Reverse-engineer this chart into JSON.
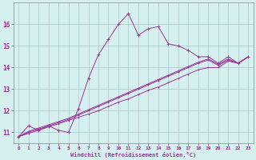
{
  "xlabel": "Windchill (Refroidissement éolien,°C)",
  "background_color": "#d6f0f0",
  "line_color": "#993399",
  "x_data": [
    0,
    1,
    2,
    3,
    4,
    5,
    6,
    7,
    8,
    9,
    10,
    11,
    12,
    13,
    14,
    15,
    16,
    17,
    18,
    19,
    20,
    21,
    22,
    23
  ],
  "y_main": [
    10.8,
    11.3,
    11.1,
    11.3,
    11.1,
    11.0,
    12.1,
    13.5,
    14.6,
    15.3,
    16.0,
    16.5,
    15.5,
    15.8,
    15.9,
    15.1,
    15.0,
    14.8,
    14.5,
    14.5,
    14.2,
    14.5,
    14.2,
    14.5
  ],
  "y_line1": [
    10.8,
    10.95,
    11.1,
    11.25,
    11.4,
    11.55,
    11.7,
    11.85,
    12.0,
    12.2,
    12.4,
    12.55,
    12.75,
    12.95,
    13.1,
    13.3,
    13.5,
    13.7,
    13.9,
    14.0,
    14.0,
    14.3,
    14.2,
    14.5
  ],
  "y_line2": [
    10.8,
    11.0,
    11.15,
    11.3,
    11.45,
    11.6,
    11.8,
    12.0,
    12.2,
    12.4,
    12.6,
    12.8,
    13.0,
    13.2,
    13.4,
    13.6,
    13.8,
    14.0,
    14.2,
    14.35,
    14.1,
    14.35,
    14.2,
    14.5
  ],
  "y_line3": [
    10.8,
    11.05,
    11.2,
    11.35,
    11.5,
    11.65,
    11.85,
    12.05,
    12.25,
    12.45,
    12.65,
    12.85,
    13.05,
    13.25,
    13.45,
    13.65,
    13.85,
    14.05,
    14.25,
    14.4,
    14.15,
    14.4,
    14.2,
    14.5
  ],
  "ylim": [
    10.5,
    17.0
  ],
  "xlim": [
    -0.5,
    23.5
  ],
  "yticks": [
    11,
    12,
    13,
    14,
    15,
    16
  ],
  "xticks": [
    0,
    1,
    2,
    3,
    4,
    5,
    6,
    7,
    8,
    9,
    10,
    11,
    12,
    13,
    14,
    15,
    16,
    17,
    18,
    19,
    20,
    21,
    22,
    23
  ]
}
